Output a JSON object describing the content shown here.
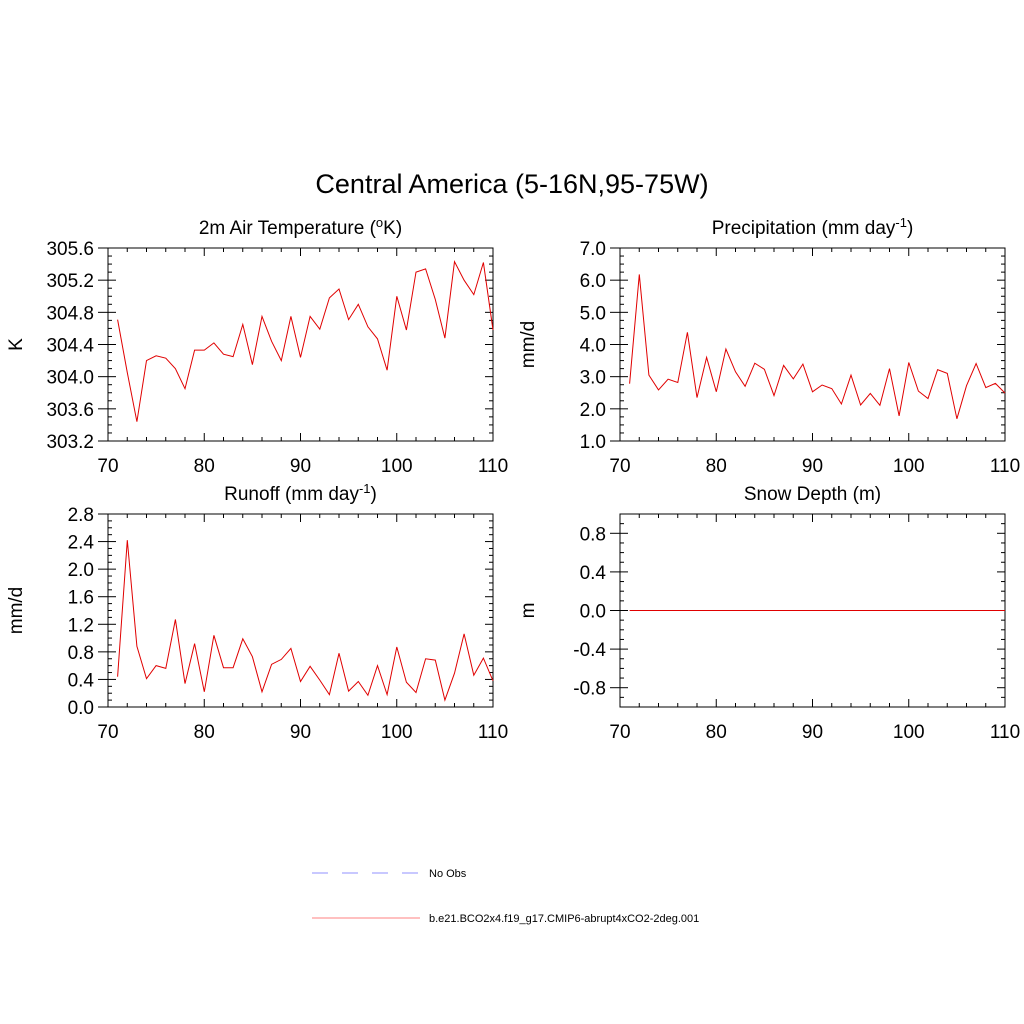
{
  "figure": {
    "title": "Central America (5-16N,95-75W)"
  },
  "chart_data": [
    {
      "type": "line",
      "title": "2m Air Temperature (",
      "title_sup": "o",
      "title_tail": "K)",
      "ylabel": "K",
      "xlim": [
        70,
        110
      ],
      "ylim": [
        303.2,
        305.6
      ],
      "xticks": [
        70,
        80,
        90,
        100,
        110
      ],
      "yticks": [
        "303.2",
        "303.6",
        "304.0",
        "304.4",
        "304.8",
        "305.2",
        "305.6"
      ],
      "series": [
        {
          "color": "#e00000",
          "x": [
            71,
            72,
            73,
            74,
            75,
            76,
            77,
            78,
            79,
            80,
            81,
            82,
            83,
            84,
            85,
            86,
            87,
            88,
            89,
            90,
            91,
            92,
            93,
            94,
            95,
            96,
            97,
            98,
            99,
            100,
            101,
            102,
            103,
            104,
            105,
            106,
            107,
            108,
            109,
            110
          ],
          "values": [
            304.71,
            304.05,
            303.44,
            304.2,
            304.26,
            304.23,
            304.1,
            303.85,
            304.33,
            304.33,
            304.42,
            304.28,
            304.25,
            304.65,
            304.15,
            304.75,
            304.44,
            304.2,
            304.75,
            304.24,
            304.75,
            304.59,
            304.98,
            305.09,
            304.71,
            304.9,
            304.62,
            304.47,
            304.08,
            305.0,
            304.58,
            305.3,
            305.34,
            304.96,
            304.48,
            305.43,
            305.2,
            305.02,
            305.42,
            304.58
          ]
        }
      ]
    },
    {
      "type": "line",
      "title": "Precipitation (mm day",
      "title_sup": "-1",
      "title_tail": ")",
      "ylabel": "mm/d",
      "xlim": [
        70,
        110
      ],
      "ylim": [
        1.0,
        7.0
      ],
      "xticks": [
        70,
        80,
        90,
        100,
        110
      ],
      "yticks": [
        "1.0",
        "2.0",
        "3.0",
        "4.0",
        "5.0",
        "6.0",
        "7.0"
      ],
      "series": [
        {
          "color": "#e00000",
          "x": [
            71,
            72,
            73,
            74,
            75,
            76,
            77,
            78,
            79,
            80,
            81,
            82,
            83,
            84,
            85,
            86,
            87,
            88,
            89,
            90,
            91,
            92,
            93,
            94,
            95,
            96,
            97,
            98,
            99,
            100,
            101,
            102,
            103,
            104,
            105,
            106,
            107,
            108,
            109,
            110
          ],
          "values": [
            2.78,
            6.18,
            3.05,
            2.59,
            2.92,
            2.82,
            4.38,
            2.35,
            3.6,
            2.53,
            3.86,
            3.15,
            2.7,
            3.42,
            3.23,
            2.41,
            3.35,
            2.93,
            3.39,
            2.53,
            2.74,
            2.63,
            2.15,
            3.05,
            2.12,
            2.48,
            2.11,
            3.25,
            1.78,
            3.44,
            2.55,
            2.32,
            3.22,
            3.1,
            1.69,
            2.72,
            3.41,
            2.66,
            2.79,
            2.49
          ]
        }
      ]
    },
    {
      "type": "line",
      "title": "Runoff (mm day",
      "title_sup": "-1",
      "title_tail": ")",
      "ylabel": "mm/d",
      "xlim": [
        70,
        110
      ],
      "ylim": [
        0.0,
        2.8
      ],
      "xticks": [
        70,
        80,
        90,
        100,
        110
      ],
      "yticks": [
        "0.0",
        "0.4",
        "0.8",
        "1.2",
        "1.6",
        "2.0",
        "2.4",
        "2.8"
      ],
      "series": [
        {
          "color": "#e00000",
          "x": [
            71,
            72,
            73,
            74,
            75,
            76,
            77,
            78,
            79,
            80,
            81,
            82,
            83,
            84,
            85,
            86,
            87,
            88,
            89,
            90,
            91,
            92,
            93,
            94,
            95,
            96,
            97,
            98,
            99,
            100,
            101,
            102,
            103,
            104,
            105,
            106,
            107,
            108,
            109,
            110
          ],
          "values": [
            0.44,
            2.42,
            0.88,
            0.41,
            0.6,
            0.56,
            1.27,
            0.34,
            0.92,
            0.22,
            1.04,
            0.57,
            0.57,
            0.99,
            0.73,
            0.22,
            0.62,
            0.69,
            0.85,
            0.37,
            0.59,
            0.39,
            0.18,
            0.78,
            0.23,
            0.37,
            0.17,
            0.6,
            0.18,
            0.87,
            0.36,
            0.21,
            0.7,
            0.68,
            0.1,
            0.49,
            1.06,
            0.46,
            0.71,
            0.38
          ]
        }
      ]
    },
    {
      "type": "line",
      "title": "Snow Depth (m)",
      "title_sup": "",
      "title_tail": "",
      "ylabel": "m",
      "xlim": [
        70,
        110
      ],
      "ylim": [
        -1.0,
        1.0
      ],
      "xticks": [
        70,
        80,
        90,
        100,
        110
      ],
      "yticks": [
        "-0.8",
        "-0.4",
        "0.0",
        "0.4",
        "0.8"
      ],
      "series": [
        {
          "color": "#e00000",
          "x": [
            71,
            110
          ],
          "values": [
            0.0,
            0.0
          ]
        }
      ]
    }
  ],
  "legend": {
    "items": [
      {
        "label": "No Obs",
        "color": "#9090ff",
        "style": "dashed"
      },
      {
        "label": "b.e21.BCO2x4.f19_g17.CMIP6-abrupt4xCO2-2deg.001",
        "color": "#ff8080",
        "style": "solid"
      }
    ]
  }
}
